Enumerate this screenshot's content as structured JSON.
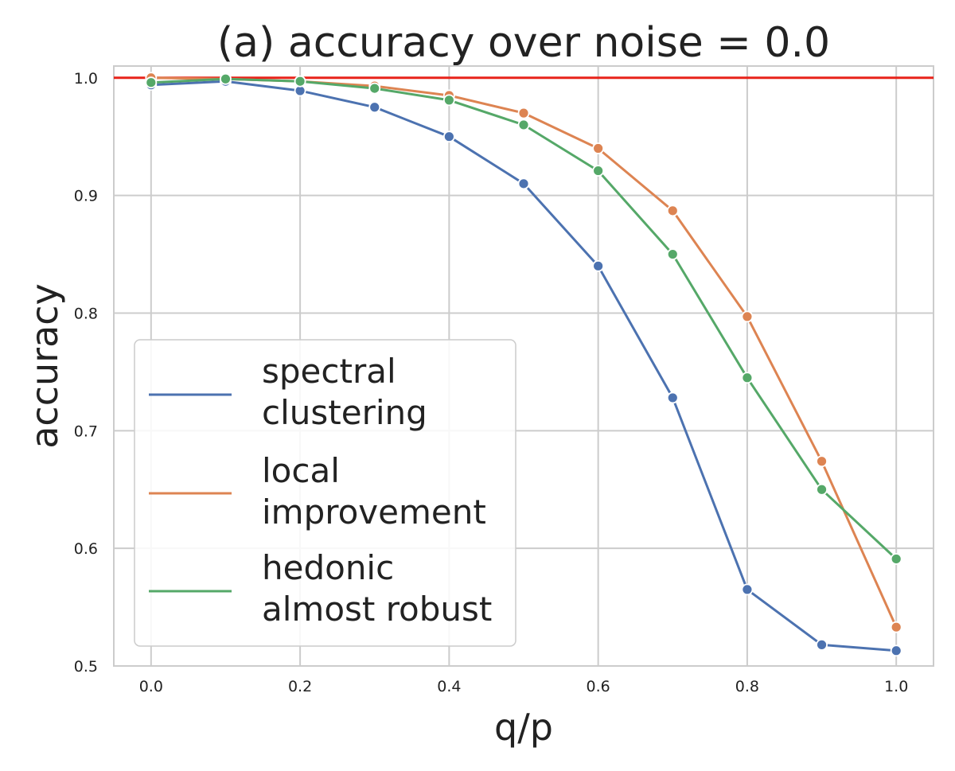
{
  "chart_data": {
    "type": "line",
    "title": "(a) accuracy over noise = 0.0",
    "xlabel": "q/p",
    "ylabel": "accuracy",
    "xlim": [
      -0.05,
      1.05
    ],
    "ylim": [
      0.5,
      1.01
    ],
    "xticks": [
      "0.0",
      "0.2",
      "0.4",
      "0.6",
      "0.8",
      "1.0"
    ],
    "yticks": [
      "0.5",
      "0.6",
      "0.7",
      "0.8",
      "0.9",
      "1.0"
    ],
    "grid": true,
    "legend_position": "lower-left",
    "reference_line": {
      "y": 1.0,
      "color": "#e8231a"
    },
    "x": [
      0.0,
      0.1,
      0.2,
      0.3,
      0.4,
      0.5,
      0.6,
      0.7,
      0.8,
      0.9,
      1.0
    ],
    "series": [
      {
        "name": "spectral clustering",
        "legend_lines": [
          "spectral",
          "clustering"
        ],
        "color": "#4c72b0",
        "values": [
          0.994,
          0.997,
          0.989,
          0.975,
          0.95,
          0.91,
          0.84,
          0.728,
          0.565,
          0.518,
          0.513
        ]
      },
      {
        "name": "local improvement",
        "legend_lines": [
          "local",
          "improvement"
        ],
        "color": "#dd8452",
        "values": [
          1.0,
          0.999,
          0.997,
          0.993,
          0.985,
          0.97,
          0.94,
          0.887,
          0.797,
          0.674,
          0.533
        ]
      },
      {
        "name": "hedonic almost robust",
        "legend_lines": [
          "hedonic",
          "almost robust"
        ],
        "color": "#55a868",
        "values": [
          0.996,
          0.999,
          0.997,
          0.991,
          0.981,
          0.96,
          0.921,
          0.85,
          0.745,
          0.65,
          0.591
        ]
      }
    ]
  }
}
